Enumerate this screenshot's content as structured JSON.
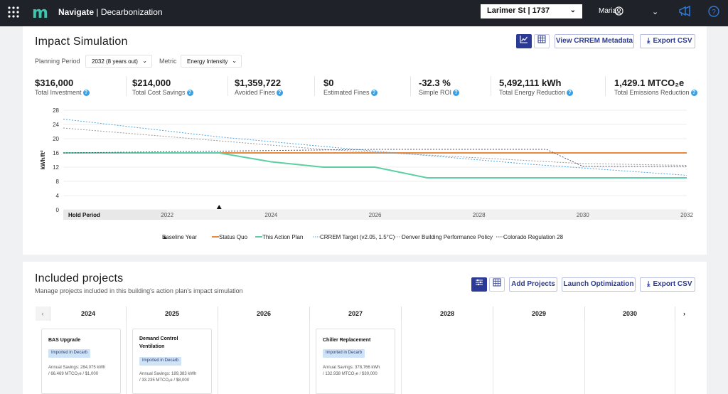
{
  "topbar": {
    "app_name": "Navigate",
    "app_section": "| Decarbonization",
    "logo": "m",
    "building_select": "Larimer St | 1737",
    "user": "Maria"
  },
  "impact": {
    "title": "Impact Simulation",
    "view_metadata": "View CRREM Metadata",
    "export_csv": "Export CSV",
    "planning_label": "Planning Period",
    "planning_value": "2032 (8 years out)",
    "metric_label": "Metric",
    "metric_value": "Energy Intensity",
    "kpis": [
      {
        "value": "$316,000",
        "label": "Total Investment"
      },
      {
        "value": "$214,000",
        "label": "Total Cost Savings"
      },
      {
        "value": "$1,359,722",
        "label": "Avoided Fines"
      },
      {
        "value": "$0",
        "label": "Estimated Fines"
      },
      {
        "value": "-32.3 %",
        "label": "Simple ROI"
      },
      {
        "value": "5,492,111 kWh",
        "label": "Total Energy Reduction"
      },
      {
        "value": "1,429.1 MTCO₂e",
        "label": "Total Emissions Reduction"
      }
    ]
  },
  "chart_data": {
    "type": "line",
    "ylabel": "kWh/ft²",
    "ylim": [
      0,
      28
    ],
    "yticks": [
      "28",
      "24",
      "20",
      "16",
      "12",
      "8",
      "4",
      "0"
    ],
    "xlim": [
      2020,
      2032
    ],
    "hold_period_label": "Hold Period",
    "xticks": [
      "2022",
      "2024",
      "2026",
      "2028",
      "2030",
      "2032"
    ],
    "baseline_year": 2023,
    "series": [
      {
        "name": "Status Quo",
        "color": "#e8893c",
        "style": "solid",
        "x": [
          2020,
          2032
        ],
        "y": [
          16,
          16
        ]
      },
      {
        "name": "This Action Plan",
        "color": "#5ccfa3",
        "style": "solid",
        "x": [
          2020,
          2023,
          2024,
          2025,
          2026,
          2027,
          2032
        ],
        "y": [
          16,
          16,
          13.5,
          12,
          12,
          9,
          9
        ]
      },
      {
        "name": "CRREM Target (v2.05, 1.5°C)",
        "color": "#4ea6e0",
        "style": "dotted",
        "x": [
          2020,
          2023,
          2026,
          2029,
          2032
        ],
        "y": [
          25.5,
          20.5,
          16.5,
          12.8,
          9.7
        ]
      },
      {
        "name": "Denver Building Performance Policy",
        "color": "#999999",
        "style": "dotted",
        "x": [
          2020,
          2025,
          2030,
          2032
        ],
        "y": [
          23,
          17,
          13,
          12.5
        ]
      },
      {
        "name": "Colorado Regulation 28",
        "color": "#555577",
        "style": "dotted",
        "x": [
          2020,
          2026,
          2029.3,
          2030,
          2032
        ],
        "y": [
          16,
          17,
          17,
          12.2,
          12.2
        ]
      }
    ],
    "legend": [
      "Baseline Year",
      "Status Quo",
      "This Action Plan",
      "CRREM Target (v2.05, 1.5°C)",
      "Denver Building Performance Policy",
      "Colorado Regulation 28"
    ]
  },
  "projects": {
    "title": "Included projects",
    "subtitle": "Manage projects included in this building's action plan's impact simulation",
    "add": "Add Projects",
    "launch": "Launch Optimization",
    "export": "Export CSV",
    "years": [
      "2024",
      "2025",
      "2026",
      "2027",
      "2028",
      "2029",
      "2030"
    ],
    "cards": [
      {
        "title": "BAS Upgrade",
        "badge": "Imported in Decarb",
        "savings1": "Annual Savings: 284,075 kWh",
        "savings2": "/ 66.469 MTCO₂e / $1,000"
      },
      {
        "title": "Demand Control Ventilation",
        "badge": "Imported in Decarb",
        "savings1": "Annual Savings: 189,383 kWh",
        "savings2": "/ 33.235 MTCO₂e / $8,000"
      },
      {
        "title": "Chiller Replacement",
        "badge": "Imported in Decarb",
        "savings1": "Annual Savings: 378,766 kWh",
        "savings2": "/ 132.938 MTCO₂e / $30,000"
      }
    ]
  }
}
